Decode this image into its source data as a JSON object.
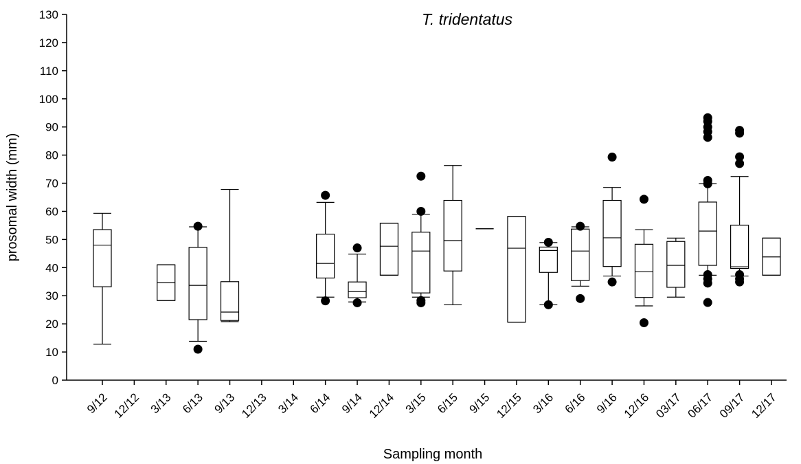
{
  "chart_data": {
    "type": "box",
    "title": "T. tridentatus",
    "x_label": "Sampling month",
    "y_label": "prosomal width (mm)",
    "categories": [
      "9/12",
      "12/12",
      "3/13",
      "6/13",
      "9/13",
      "12/13",
      "3/14",
      "6/14",
      "9/14",
      "12/14",
      "3/15",
      "6/15",
      "9/15",
      "12/15",
      "3/16",
      "6/16",
      "9/16",
      "12/16",
      "03/17",
      "06/17",
      "09/17",
      "12/17"
    ],
    "boxes": [
      {
        "min": 12.8,
        "q1": 33.2,
        "median": 48,
        "q3": 53.5,
        "max": 59.3,
        "outliers": []
      },
      null,
      {
        "min": 28.3,
        "q1": 28.3,
        "median": 34.6,
        "q3": 41,
        "max": 41,
        "outliers": []
      },
      {
        "min": 13.8,
        "q1": 21.5,
        "median": 33.7,
        "q3": 47.2,
        "max": 54.5,
        "outliers": [
          11,
          54.7
        ]
      },
      {
        "min": 20.8,
        "q1": 21.2,
        "median": 24.2,
        "q3": 35,
        "max": 67.8,
        "outliers": []
      },
      null,
      null,
      {
        "min": 29.5,
        "q1": 36.3,
        "median": 41.5,
        "q3": 51.9,
        "max": 63.2,
        "outliers": [
          28.2,
          65.7
        ]
      },
      {
        "min": 27.8,
        "q1": 29.3,
        "median": 31.5,
        "q3": 34.9,
        "max": 44.8,
        "outliers": [
          27.5,
          47
        ]
      },
      {
        "min": 37.3,
        "q1": 37.3,
        "median": 47.6,
        "q3": 55.8,
        "max": 55.8,
        "outliers": []
      },
      {
        "min": 29.5,
        "q1": 31,
        "median": 45.9,
        "q3": 52.6,
        "max": 59,
        "outliers": [
          27.5,
          28.3,
          60,
          72.5
        ]
      },
      {
        "min": 26.8,
        "q1": 38.8,
        "median": 49.6,
        "q3": 63.9,
        "max": 76.3,
        "outliers": []
      },
      {
        "min": 53.8,
        "q1": 53.8,
        "median": 53.8,
        "q3": 53.8,
        "max": 53.8,
        "outliers": []
      },
      {
        "min": 20.6,
        "q1": 20.6,
        "median": 46.9,
        "q3": 58.2,
        "max": 58.2,
        "outliers": []
      },
      {
        "min": 26.8,
        "q1": 38.3,
        "median": 46.1,
        "q3": 47.3,
        "max": 48.9,
        "outliers": [
          26.8,
          49
        ]
      },
      {
        "min": 33.4,
        "q1": 35.4,
        "median": 45.9,
        "q3": 53.7,
        "max": 54.5,
        "outliers": [
          29,
          54.7
        ]
      },
      {
        "min": 37,
        "q1": 40.4,
        "median": 50.6,
        "q3": 63.9,
        "max": 68.5,
        "outliers": [
          34.9,
          79.3
        ]
      },
      {
        "min": 26.4,
        "q1": 29.4,
        "median": 38.5,
        "q3": 48.3,
        "max": 53.5,
        "outliers": [
          20.4,
          64.3
        ]
      },
      {
        "min": 29.5,
        "q1": 33,
        "median": 40.8,
        "q3": 49.3,
        "max": 50.5,
        "outliers": []
      },
      {
        "min": 37.3,
        "q1": 40.8,
        "median": 53,
        "q3": 63.3,
        "max": 69.8,
        "outliers": [
          27.6,
          34.5,
          36,
          37.5,
          69.8,
          71,
          86.3,
          88.3,
          90,
          92,
          93.3
        ]
      },
      {
        "min": 37,
        "q1": 39.7,
        "median": 40.3,
        "q3": 55.1,
        "max": 72.4,
        "outliers": [
          34.9,
          36,
          37.5,
          77,
          79.4,
          87.8,
          88.8
        ]
      },
      {
        "min": 37.3,
        "q1": 37.3,
        "median": 43.8,
        "q3": 50.5,
        "max": 50.5,
        "outliers": []
      }
    ],
    "color": "#000000",
    "ylim": [
      0,
      130
    ],
    "yticks": [
      0,
      10,
      20,
      30,
      40,
      50,
      60,
      70,
      80,
      90,
      100,
      110,
      120,
      130
    ]
  }
}
